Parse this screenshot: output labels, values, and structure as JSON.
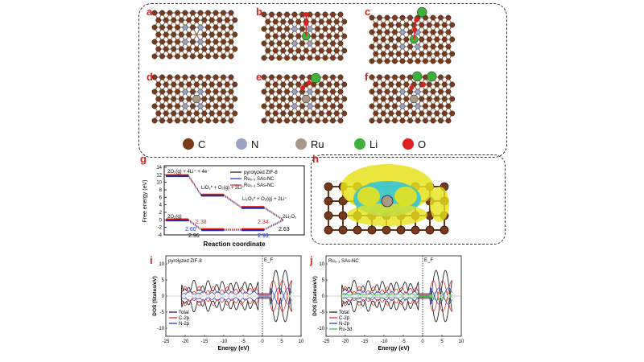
{
  "panels": {
    "a": "a",
    "b": "b",
    "c": "c",
    "d": "d",
    "e": "e",
    "f": "f",
    "g": "g",
    "h": "h",
    "i": "i",
    "j": "j"
  },
  "legend": [
    "C",
    "N",
    "Ru",
    "Li",
    "O"
  ],
  "colors": {
    "C": "#7a3a1c",
    "N": "#9aa3c4",
    "Ru": "#a8978a",
    "Li": "#3fb03a",
    "O": "#e02020",
    "red": "#e0201b",
    "blue": "#1f2fbf"
  },
  "energy": {
    "ylabel": "Free energy (eV)",
    "xlabel": "Reaction coordinate",
    "yticks": [
      "14",
      "12",
      "10",
      "8",
      "6",
      "4",
      "2",
      "0",
      "-2",
      "-4"
    ],
    "legend": [
      "pyrolyzed ZIF-8",
      "Ru₀.₃ SAs-NC",
      "Ru₀.₃ SAs-NC"
    ],
    "annotations": {
      "a1": "2O₂(g) + 4Li⁺ + 4e⁻",
      "a2": "LiO₂* + O₂(g) + 3Li⁺",
      "a3": "Li₂O₂* + O₂(g) + 2Li⁺",
      "a4": "2Li₂O₂",
      "a5": "2O₂(g)"
    },
    "values": {
      "v1": "2.38",
      "v2": "2.60",
      "v3": "2.96",
      "v4": "2.34",
      "v5": "2.63",
      "v6": "2.93"
    }
  },
  "dos_i": {
    "title": "pyrolyzed ZIF-8",
    "ylabel": "DOS (States/eV)",
    "xlabel": "Energy (eV)",
    "ef": "E_F",
    "xticks": [
      "-25",
      "-20",
      "-15",
      "-10",
      "-5",
      "0",
      "5",
      "10"
    ],
    "yticks": [
      "10",
      "5",
      "0",
      "-5",
      "-10"
    ],
    "legend": [
      "Total",
      "C-2p",
      "N-2p"
    ]
  },
  "dos_j": {
    "title": "Ru₀.₃ SAs-NC",
    "ylabel": "DOS (States/eV)",
    "xlabel": "Energy (eV)",
    "ef": "E_F",
    "xticks": [
      "-25",
      "-20",
      "-15",
      "-10",
      "-5",
      "0",
      "5",
      "10"
    ],
    "yticks": [
      "10",
      "5",
      "0",
      "-5",
      "-10"
    ],
    "legend": [
      "Total",
      "C-2p",
      "N-2p",
      "Ru-3d"
    ]
  }
}
